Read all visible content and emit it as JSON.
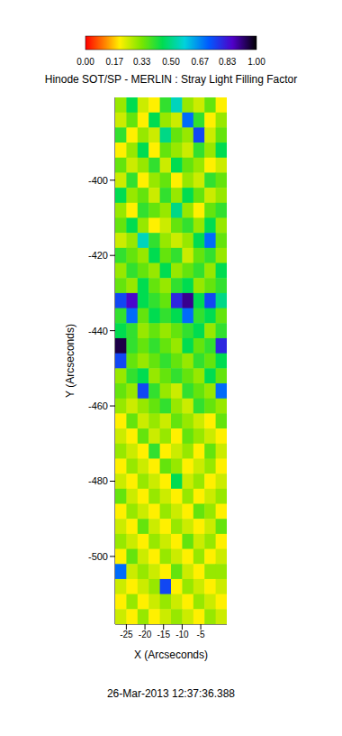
{
  "chart_data": {
    "type": "heatmap",
    "title": "Hinode SOT/SP - MERLIN : Stray Light Filling Factor",
    "x_label": "X (Arcseconds)",
    "y_label": "Y (Arcseconds)",
    "annotations": [
      "26-Mar-2013 12:37:36.388"
    ],
    "xlim": [
      -28,
      2
    ],
    "xticks": [
      -25,
      -20,
      -15,
      -10,
      -5
    ],
    "ylim": [
      -518,
      -378
    ],
    "yticks": [
      -500,
      -480,
      -460,
      -440,
      -420,
      -400
    ],
    "colorbar": {
      "range": [
        0,
        1
      ],
      "ticks": [
        {
          "value": 0,
          "label": "0.00"
        },
        0.17,
        0.33,
        {
          "value": 0.5,
          "label": "0.50"
        },
        0.67,
        0.83,
        {
          "value": 1,
          "label": "1.00"
        }
      ]
    },
    "heatmap": {
      "x": [
        -26.5,
        -23.5,
        -20.5,
        -17.5,
        -14.5,
        -11.5,
        -8.5,
        -5.5,
        -2.5,
        0.5
      ],
      "y": [
        -380,
        -384,
        -388,
        -392,
        -396,
        -400,
        -404,
        -408,
        -412,
        -416,
        -420,
        -424,
        -428,
        -432,
        -436,
        -440,
        -444,
        -448,
        -452,
        -456,
        -460,
        -464,
        -468,
        -472,
        -476,
        -480,
        -484,
        -488,
        -492,
        -496,
        -500,
        -504,
        -508,
        -512,
        -516
      ],
      "z": [
        [
          0.3,
          0.45,
          0.25,
          0.2,
          0.4,
          0.55,
          0.3,
          0.25,
          0.35,
          0.2
        ],
        [
          0.25,
          0.35,
          0.2,
          0.45,
          0.3,
          0.25,
          0.7,
          0.4,
          0.2,
          0.3
        ],
        [
          0.4,
          0.2,
          0.3,
          0.25,
          0.5,
          0.35,
          0.3,
          0.75,
          0.25,
          0.35
        ],
        [
          0.2,
          0.3,
          0.45,
          0.2,
          0.35,
          0.3,
          0.25,
          0.4,
          0.3,
          0.45
        ],
        [
          0.35,
          0.25,
          0.3,
          0.4,
          0.25,
          0.45,
          0.35,
          0.3,
          0.2,
          0.25
        ],
        [
          0.25,
          0.4,
          0.2,
          0.3,
          0.35,
          0.2,
          0.3,
          0.25,
          0.4,
          0.35
        ],
        [
          0.45,
          0.3,
          0.35,
          0.25,
          0.4,
          0.3,
          0.45,
          0.35,
          0.25,
          0.3
        ],
        [
          0.3,
          0.2,
          0.4,
          0.35,
          0.3,
          0.5,
          0.3,
          0.2,
          0.35,
          0.4
        ],
        [
          0.35,
          0.45,
          0.3,
          0.2,
          0.25,
          0.35,
          0.4,
          0.3,
          0.45,
          0.3
        ],
        [
          0.25,
          0.3,
          0.55,
          0.4,
          0.3,
          0.25,
          0.3,
          0.45,
          0.7,
          0.35
        ],
        [
          0.4,
          0.35,
          0.3,
          0.45,
          0.35,
          0.4,
          0.25,
          0.35,
          0.4,
          0.3
        ],
        [
          0.3,
          0.4,
          0.35,
          0.3,
          0.45,
          0.3,
          0.35,
          0.4,
          0.3,
          0.45
        ],
        [
          0.35,
          0.3,
          0.45,
          0.35,
          0.3,
          0.4,
          0.45,
          0.3,
          0.35,
          0.4
        ],
        [
          0.75,
          0.85,
          0.45,
          0.4,
          0.35,
          0.8,
          0.9,
          0.45,
          0.75,
          0.5
        ],
        [
          0.4,
          0.7,
          0.35,
          0.45,
          0.4,
          0.45,
          0.7,
          0.4,
          0.45,
          0.35
        ],
        [
          0.45,
          0.4,
          0.3,
          0.35,
          0.3,
          0.35,
          0.4,
          0.45,
          0.3,
          0.4
        ],
        [
          0.95,
          0.4,
          0.35,
          0.4,
          0.35,
          0.3,
          0.45,
          0.35,
          0.4,
          0.8
        ],
        [
          0.75,
          0.35,
          0.3,
          0.35,
          0.4,
          0.35,
          0.3,
          0.4,
          0.35,
          0.45
        ],
        [
          0.3,
          0.4,
          0.45,
          0.3,
          0.35,
          0.4,
          0.35,
          0.3,
          0.45,
          0.35
        ],
        [
          0.35,
          0.3,
          0.75,
          0.4,
          0.3,
          0.25,
          0.4,
          0.35,
          0.3,
          0.7
        ],
        [
          0.3,
          0.25,
          0.3,
          0.35,
          0.4,
          0.3,
          0.25,
          0.4,
          0.35,
          0.3
        ],
        [
          0.2,
          0.35,
          0.25,
          0.3,
          0.25,
          0.35,
          0.3,
          0.25,
          0.2,
          0.35
        ],
        [
          0.25,
          0.2,
          0.35,
          0.25,
          0.3,
          0.2,
          0.35,
          0.3,
          0.25,
          0.2
        ],
        [
          0.3,
          0.25,
          0.2,
          0.4,
          0.2,
          0.25,
          0.3,
          0.2,
          0.35,
          0.25
        ],
        [
          0.2,
          0.3,
          0.25,
          0.2,
          0.35,
          0.3,
          0.2,
          0.25,
          0.3,
          0.2
        ],
        [
          0.25,
          0.2,
          0.3,
          0.25,
          0.2,
          0.45,
          0.25,
          0.3,
          0.2,
          0.25
        ],
        [
          0.35,
          0.25,
          0.2,
          0.3,
          0.25,
          0.2,
          0.3,
          0.2,
          0.25,
          0.3
        ],
        [
          0.2,
          0.3,
          0.25,
          0.2,
          0.3,
          0.25,
          0.2,
          0.35,
          0.3,
          0.2
        ],
        [
          0.25,
          0.2,
          0.35,
          0.25,
          0.2,
          0.3,
          0.25,
          0.2,
          0.25,
          0.35
        ],
        [
          0.3,
          0.25,
          0.2,
          0.3,
          0.25,
          0.2,
          0.35,
          0.25,
          0.3,
          0.2
        ],
        [
          0.2,
          0.35,
          0.25,
          0.2,
          0.3,
          0.25,
          0.2,
          0.3,
          0.2,
          0.25
        ],
        [
          0.7,
          0.25,
          0.3,
          0.25,
          0.2,
          0.35,
          0.25,
          0.2,
          0.3,
          0.3
        ],
        [
          0.25,
          0.2,
          0.25,
          0.3,
          0.75,
          0.2,
          0.3,
          0.25,
          0.2,
          0.25
        ],
        [
          0.2,
          0.3,
          0.2,
          0.25,
          0.3,
          0.25,
          0.2,
          0.3,
          0.25,
          0.2
        ],
        [
          0.25,
          0.2,
          0.3,
          0.2,
          0.25,
          0.3,
          0.25,
          0.2,
          0.3,
          0.25
        ]
      ]
    }
  }
}
